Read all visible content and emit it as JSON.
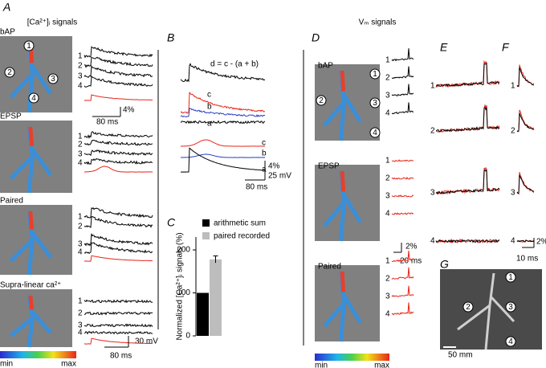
{
  "panel_a": {
    "label": "A",
    "title": "[Ca²⁺]ᵢ signals",
    "rows": [
      "bAP",
      "EPSP",
      "Paired",
      "Supra-linear ca²⁺"
    ],
    "scale_y": "4%",
    "scale_x": "80 ms",
    "scale_mv": "30 mV",
    "scale_x2": "80 ms"
  },
  "trace_ids": [
    "1",
    "2",
    "3",
    "4"
  ],
  "colorbar": [
    "min",
    "max"
  ],
  "panel_b": {
    "label": "B",
    "equation": "d = c - (a + b)",
    "traces": [
      "c",
      "b",
      "a"
    ],
    "scale_y": "4%",
    "scale_mv": "25 mV",
    "scale_x": "80 ms"
  },
  "panel_d": {
    "label": "D",
    "title": "Vₘ signals",
    "rows": [
      "bAP",
      "EPSP",
      "Paired"
    ],
    "scale_y": "2%",
    "scale_x": "20 ms"
  },
  "panel_e": {
    "label": "E"
  },
  "panel_f": {
    "label": "F",
    "scale_y": "2%",
    "scale_x": "10 ms"
  },
  "panel_g": {
    "label": "G",
    "scale": "50 mm"
  },
  "chart_data": {
    "type": "bar",
    "label": "C",
    "ylabel": "Normalized [Ca²⁺]ᵢ signals (%)",
    "ylim": [
      0,
      230
    ],
    "yticks": [
      0,
      100,
      200
    ],
    "series": [
      {
        "name": "arithmetic sum",
        "color": "#000000",
        "values": [
          100
        ]
      },
      {
        "name": "paired recorded",
        "color": "#bdbdbd",
        "values": [
          178
        ],
        "errors": [
          8
        ]
      }
    ]
  }
}
